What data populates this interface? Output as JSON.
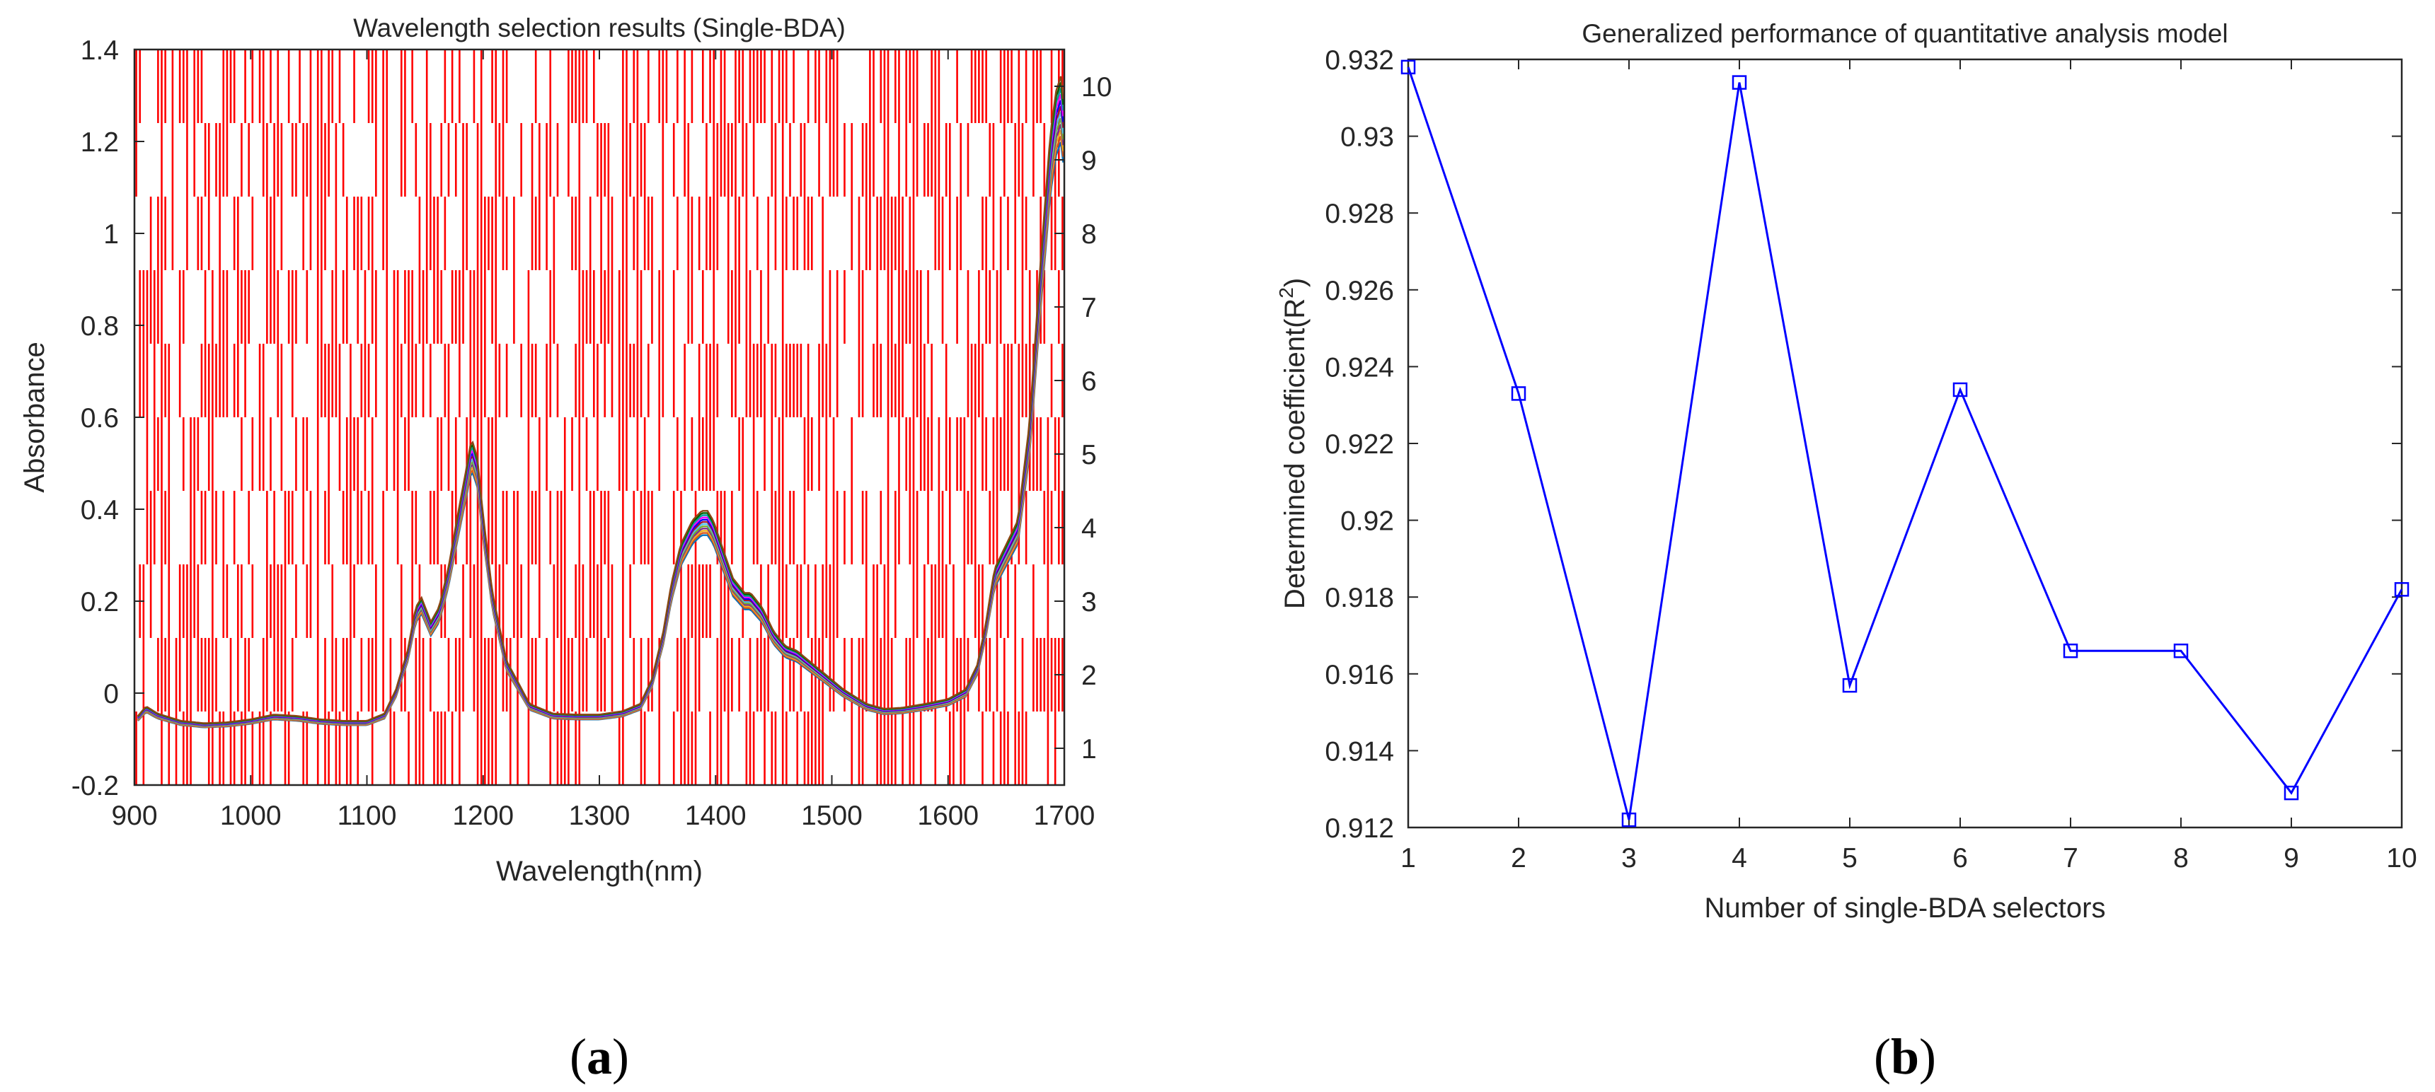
{
  "colors": {
    "selection_bar": "#ff0000",
    "line_b": "#0000ff",
    "axis": "#262626",
    "spectra_palette": [
      "#0072bd",
      "#d95319",
      "#edb120",
      "#7e2f8e",
      "#77ac30",
      "#4dbeee",
      "#a2142f",
      "#0000ff",
      "#ff00ff",
      "#00a0a0",
      "#006400",
      "#8b4513"
    ]
  },
  "panels": [
    {
      "open": "(",
      "letter": "a",
      "close": ")"
    },
    {
      "open": "(",
      "letter": "b",
      "close": ")"
    }
  ],
  "chart_data": [
    {
      "type": "line",
      "title": "Wavelength selection results (Single-BDA)",
      "xlabel": "Wavelength(nm)",
      "ylabel": "Absorbance",
      "xlim": [
        900,
        1700
      ],
      "ylim": [
        -0.2,
        1.4
      ],
      "x_ticks": [
        900,
        1000,
        1100,
        1200,
        1300,
        1400,
        1500,
        1600,
        1700
      ],
      "y_ticks": [
        -0.2,
        0,
        0.2,
        0.4,
        0.6,
        0.8,
        1,
        1.2,
        1.4
      ],
      "y_tick_labels": [
        "-0.2",
        "0",
        "0.2",
        "0.4",
        "0.6",
        "0.8",
        "1",
        "1.2",
        "1.4"
      ],
      "y2_ticks": [
        1,
        2,
        3,
        4,
        5,
        6,
        7,
        8,
        9,
        10
      ],
      "y2lim": [
        0.5,
        10.5
      ],
      "selection_rows": [
        1,
        2,
        3,
        4,
        5,
        6,
        7,
        8,
        9,
        10
      ],
      "selection_band_count": 256,
      "selection_fraction": 0.5,
      "series_count": 12,
      "mean_spectrum": {
        "x": [
          903,
          910,
          920,
          940,
          960,
          980,
          1000,
          1020,
          1040,
          1060,
          1080,
          1100,
          1115,
          1125,
          1135,
          1142,
          1147,
          1155,
          1162,
          1170,
          1178,
          1185,
          1190,
          1195,
          1200,
          1208,
          1220,
          1240,
          1260,
          1280,
          1300,
          1320,
          1335,
          1345,
          1355,
          1362,
          1370,
          1380,
          1388,
          1393,
          1398,
          1405,
          1415,
          1425,
          1430,
          1440,
          1450,
          1460,
          1470,
          1480,
          1490,
          1500,
          1510,
          1520,
          1530,
          1545,
          1560,
          1580,
          1600,
          1615,
          1625,
          1632,
          1640,
          1650,
          1660,
          1670,
          1680,
          1688,
          1693,
          1697,
          1700
        ],
        "y": [
          -0.055,
          -0.035,
          -0.05,
          -0.065,
          -0.07,
          -0.068,
          -0.062,
          -0.052,
          -0.055,
          -0.062,
          -0.065,
          -0.065,
          -0.05,
          0.0,
          0.08,
          0.17,
          0.19,
          0.14,
          0.17,
          0.25,
          0.36,
          0.45,
          0.52,
          0.48,
          0.36,
          0.2,
          0.06,
          -0.03,
          -0.05,
          -0.052,
          -0.052,
          -0.045,
          -0.03,
          0.02,
          0.12,
          0.22,
          0.3,
          0.35,
          0.37,
          0.37,
          0.35,
          0.3,
          0.23,
          0.2,
          0.2,
          0.17,
          0.12,
          0.09,
          0.08,
          0.06,
          0.04,
          0.02,
          0.0,
          -0.015,
          -0.03,
          -0.04,
          -0.038,
          -0.03,
          -0.02,
          0.0,
          0.05,
          0.13,
          0.25,
          0.3,
          0.35,
          0.55,
          0.9,
          1.15,
          1.24,
          1.27,
          1.2
        ]
      }
    },
    {
      "type": "line",
      "title": "Generalized performance of quantitative analysis model",
      "xlabel": "Number of single-BDA selectors",
      "ylabel": "Determined coefficient(R",
      "ylabel_sup": "2",
      "ylabel_end": ")",
      "xlim": [
        1,
        10
      ],
      "ylim": [
        0.912,
        0.932
      ],
      "x_ticks": [
        1,
        2,
        3,
        4,
        5,
        6,
        7,
        8,
        9,
        10
      ],
      "y_ticks": [
        0.912,
        0.914,
        0.916,
        0.918,
        0.92,
        0.922,
        0.924,
        0.926,
        0.928,
        0.93,
        0.932
      ],
      "y_tick_labels": [
        "0.912",
        "0.914",
        "0.916",
        "0.918",
        "0.92",
        "0.922",
        "0.924",
        "0.926",
        "0.928",
        "0.93",
        "0.932"
      ],
      "x": [
        1,
        2,
        3,
        4,
        5,
        6,
        7,
        8,
        9,
        10
      ],
      "values": [
        0.9318,
        0.9233,
        0.9122,
        0.9314,
        0.9157,
        0.9234,
        0.9166,
        0.9166,
        0.9129,
        0.9182
      ],
      "marker": "square"
    }
  ]
}
